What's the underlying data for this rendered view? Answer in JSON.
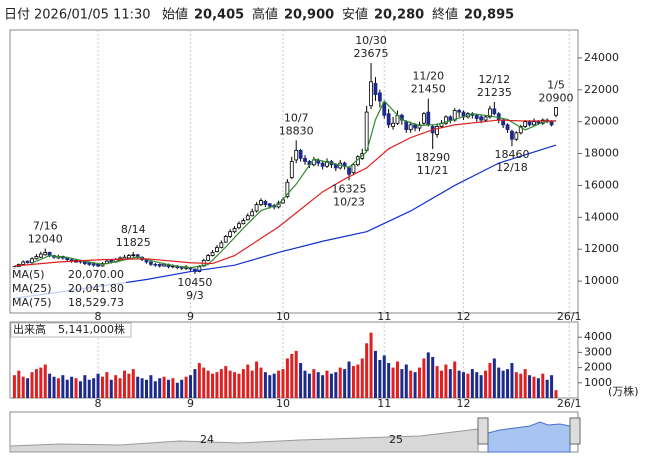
{
  "chart_data": {
    "type": "candlestick",
    "header": {
      "date_label": "日付",
      "date": "2026/01/05 11:30",
      "items": [
        {
          "name": "始値",
          "label": "20,405",
          "color": "#000"
        },
        {
          "name": "高値",
          "label": "20,900",
          "color": "#d00000"
        },
        {
          "name": "安値",
          "label": "20,280",
          "color": "#008000"
        },
        {
          "name": "終値",
          "label": "20,895",
          "color": "#000"
        }
      ]
    },
    "xlim": [
      -1,
      128
    ],
    "xticks": [
      {
        "value": 19,
        "label": "8"
      },
      {
        "value": 40,
        "label": "9"
      },
      {
        "value": 61,
        "label": "10"
      },
      {
        "value": 84,
        "label": "11"
      },
      {
        "value": 102,
        "label": "12"
      },
      {
        "value": 126,
        "label": "26/1"
      }
    ],
    "ylim": [
      8000,
      25750
    ],
    "yticks": [
      10000,
      12000,
      14000,
      16000,
      18000,
      20000,
      22000,
      24000
    ],
    "grid": true,
    "up_color": "#ffffff",
    "down_color": "#1c2a8c",
    "ohlc": [
      [
        10800,
        10950,
        10750,
        10900
      ],
      [
        10900,
        11100,
        10850,
        11050
      ],
      [
        11050,
        11300,
        11000,
        11200
      ],
      [
        11250,
        11300,
        11100,
        11150
      ],
      [
        11150,
        11500,
        11100,
        11400
      ],
      [
        11400,
        11700,
        11350,
        11550
      ],
      [
        11500,
        11850,
        11450,
        11700
      ],
      [
        11650,
        12040,
        11600,
        11800
      ],
      [
        11800,
        11850,
        11500,
        11600
      ],
      [
        11600,
        11650,
        11400,
        11500
      ],
      [
        11450,
        11650,
        11400,
        11550
      ],
      [
        11550,
        11600,
        11350,
        11450
      ],
      [
        11450,
        11500,
        11250,
        11350
      ],
      [
        11350,
        11400,
        11150,
        11250
      ],
      [
        11200,
        11400,
        11150,
        11300
      ],
      [
        11300,
        11350,
        11100,
        11200
      ],
      [
        11200,
        11250,
        11000,
        11100
      ],
      [
        11150,
        11200,
        10950,
        11050
      ],
      [
        11100,
        11150,
        10900,
        11000
      ],
      [
        11050,
        11100,
        10850,
        10950
      ],
      [
        10950,
        11200,
        10900,
        11100
      ],
      [
        11100,
        11350,
        11050,
        11250
      ],
      [
        11300,
        11350,
        11100,
        11200
      ],
      [
        11200,
        11450,
        11150,
        11350
      ],
      [
        11300,
        11550,
        11250,
        11450
      ],
      [
        11400,
        11650,
        11350,
        11500
      ],
      [
        11450,
        11700,
        11400,
        11600
      ],
      [
        11600,
        11825,
        11500,
        11650
      ],
      [
        11650,
        11700,
        11400,
        11500
      ],
      [
        11500,
        11550,
        11250,
        11350
      ],
      [
        11350,
        11400,
        11100,
        11200
      ],
      [
        11200,
        11250,
        10950,
        11050
      ],
      [
        11050,
        11150,
        10900,
        11000
      ],
      [
        11050,
        11100,
        10850,
        10950
      ],
      [
        10950,
        11150,
        10900,
        11050
      ],
      [
        11050,
        11100,
        10800,
        10900
      ],
      [
        10900,
        11050,
        10800,
        10950
      ],
      [
        10950,
        11000,
        10750,
        10850
      ],
      [
        10900,
        10950,
        10700,
        10800
      ],
      [
        10800,
        11000,
        10700,
        10900
      ],
      [
        10850,
        10900,
        10650,
        10750
      ],
      [
        10750,
        10800,
        10450,
        10600
      ],
      [
        10600,
        11000,
        10550,
        10900
      ],
      [
        10950,
        11400,
        10900,
        11300
      ],
      [
        11300,
        11700,
        11250,
        11600
      ],
      [
        11600,
        11950,
        11550,
        11800
      ],
      [
        11850,
        12250,
        11800,
        12100
      ],
      [
        12100,
        12550,
        12050,
        12400
      ],
      [
        12450,
        12900,
        12400,
        12800
      ],
      [
        12800,
        13250,
        12700,
        13100
      ],
      [
        13100,
        13450,
        13000,
        13300
      ],
      [
        13350,
        13750,
        13250,
        13600
      ],
      [
        13600,
        13950,
        13550,
        13800
      ],
      [
        13850,
        14250,
        13800,
        14100
      ],
      [
        14100,
        14550,
        14050,
        14350
      ],
      [
        14400,
        14950,
        14300,
        14800
      ],
      [
        14800,
        15200,
        14700,
        15050
      ],
      [
        15000,
        15100,
        14650,
        14800
      ],
      [
        14850,
        14900,
        14550,
        14700
      ],
      [
        14750,
        14850,
        14500,
        14650
      ],
      [
        14650,
        15050,
        14550,
        14900
      ],
      [
        14900,
        15250,
        14850,
        15100
      ],
      [
        15300,
        16400,
        15200,
        16200
      ],
      [
        16500,
        17800,
        16400,
        17500
      ],
      [
        17600,
        18830,
        17400,
        18200
      ],
      [
        18200,
        18300,
        17500,
        17700
      ],
      [
        17700,
        17900,
        17300,
        17500
      ],
      [
        17500,
        17600,
        17100,
        17300
      ],
      [
        17300,
        17800,
        17200,
        17600
      ],
      [
        17600,
        17700,
        17200,
        17400
      ],
      [
        17400,
        17500,
        17000,
        17200
      ],
      [
        17200,
        17700,
        17100,
        17500
      ],
      [
        17500,
        17600,
        17100,
        17300
      ],
      [
        17300,
        17400,
        16900,
        17100
      ],
      [
        17100,
        17600,
        17000,
        17400
      ],
      [
        17400,
        17500,
        17000,
        17200
      ],
      [
        17100,
        17200,
        16325,
        16700
      ],
      [
        16800,
        17400,
        16700,
        17300
      ],
      [
        17300,
        17900,
        17200,
        17800
      ],
      [
        17700,
        18300,
        17600,
        18000
      ],
      [
        18200,
        21000,
        18100,
        20600
      ],
      [
        21000,
        23675,
        20800,
        22500
      ],
      [
        22400,
        22800,
        21300,
        21700
      ],
      [
        21800,
        22000,
        20900,
        21300
      ],
      [
        21200,
        21300,
        20200,
        20400
      ],
      [
        20500,
        20800,
        19600,
        19800
      ],
      [
        19700,
        20300,
        19500,
        19900
      ],
      [
        19900,
        20700,
        19800,
        20400
      ],
      [
        20400,
        20500,
        19800,
        20100
      ],
      [
        20000,
        20100,
        19300,
        19500
      ],
      [
        19500,
        20000,
        19300,
        19800
      ],
      [
        19800,
        19900,
        19400,
        19600
      ],
      [
        19600,
        20000,
        19400,
        19800
      ],
      [
        19900,
        20600,
        19800,
        20500
      ],
      [
        20600,
        21450,
        19700,
        19800
      ],
      [
        19700,
        19800,
        18290,
        19300
      ],
      [
        19200,
        19900,
        19000,
        19700
      ],
      [
        19700,
        20100,
        19600,
        19900
      ],
      [
        19900,
        20400,
        19800,
        20300
      ],
      [
        20300,
        20400,
        19900,
        20100
      ],
      [
        20100,
        20850,
        20000,
        20700
      ],
      [
        20700,
        20800,
        20300,
        20600
      ],
      [
        20600,
        20700,
        20100,
        20300
      ],
      [
        20300,
        20600,
        20200,
        20500
      ],
      [
        20500,
        20600,
        20200,
        20400
      ],
      [
        20400,
        20500,
        20000,
        20200
      ],
      [
        20300,
        20400,
        19900,
        20100
      ],
      [
        20100,
        20400,
        20000,
        20300
      ],
      [
        20300,
        21000,
        20200,
        20800
      ],
      [
        20800,
        21235,
        20400,
        20500
      ],
      [
        20500,
        20600,
        19900,
        20100
      ],
      [
        20100,
        20200,
        19600,
        19800
      ],
      [
        19800,
        19900,
        19300,
        19500
      ],
      [
        19400,
        19500,
        18460,
        18900
      ],
      [
        18900,
        19400,
        18800,
        19300
      ],
      [
        19300,
        19800,
        19200,
        19700
      ],
      [
        19700,
        20100,
        19600,
        20000
      ],
      [
        20000,
        20100,
        19700,
        19800
      ],
      [
        19800,
        20200,
        19700,
        20000
      ],
      [
        20000,
        20100,
        19800,
        19900
      ],
      [
        19900,
        20200,
        19800,
        20100
      ],
      [
        20100,
        20200,
        19900,
        20000
      ],
      [
        20000,
        20100,
        19700,
        19800
      ],
      [
        20405,
        20900,
        20280,
        20895
      ]
    ],
    "series": [
      {
        "name": "MA(5)",
        "label": "20,070.00",
        "color": "#2e8b2e",
        "x": [
          4,
          8,
          12,
          16,
          20,
          24,
          28,
          32,
          36,
          40,
          44,
          48,
          52,
          56,
          60,
          64,
          68,
          72,
          76,
          80,
          82,
          84,
          88,
          92,
          96,
          100,
          104,
          108,
          112,
          116,
          120,
          123
        ],
        "values": [
          11140,
          11600,
          11490,
          11240,
          11060,
          11270,
          11520,
          11220,
          10970,
          10840,
          11040,
          12140,
          13320,
          14420,
          14820,
          16080,
          17660,
          17400,
          17140,
          18120,
          20120,
          21300,
          20120,
          19760,
          19820,
          20140,
          20500,
          20360,
          20140,
          19480,
          19960,
          20070
        ]
      },
      {
        "name": "MA(25)",
        "label": "20,041.80",
        "color": "#e02020",
        "x": [
          0,
          10,
          20,
          30,
          40,
          45,
          50,
          55,
          60,
          65,
          70,
          75,
          80,
          85,
          90,
          95,
          100,
          110,
          115,
          123
        ],
        "values": [
          10950,
          11200,
          11350,
          11400,
          11150,
          11100,
          11600,
          12500,
          13400,
          14500,
          15600,
          16400,
          17100,
          18300,
          19000,
          19500,
          19800,
          20100,
          20050,
          20042
        ]
      },
      {
        "name": "MA(75)",
        "label": "18,529.73",
        "color": "#1030d0",
        "x": [
          0,
          10,
          20,
          30,
          40,
          50,
          60,
          70,
          80,
          90,
          100,
          110,
          123
        ],
        "values": [
          8930,
          9300,
          9700,
          10100,
          10600,
          11000,
          11800,
          12500,
          13100,
          14400,
          16000,
          17400,
          18530
        ]
      }
    ],
    "annotations": [
      {
        "date": "7/16",
        "value": 12040
      },
      {
        "date": "8/14",
        "value": 11825
      },
      {
        "date": "9/3",
        "value": 10450
      },
      {
        "date": "10/7",
        "value": 18830
      },
      {
        "date": "10/23",
        "value": 16325
      },
      {
        "date": "10/30",
        "value": 23675
      },
      {
        "date": "11/20",
        "value": 21450
      },
      {
        "date": "11/21",
        "value": 18290
      },
      {
        "date": "12/12",
        "value": 21235
      },
      {
        "date": "12/18",
        "value": 18460
      },
      {
        "date": "1/5",
        "value": 20900
      }
    ],
    "volume_title": "出来高",
    "volume_label": "5,141,000株",
    "volume_unit": "(万株)",
    "vlim": [
      0,
      5000
    ],
    "vticks": [
      1000,
      2000,
      3000,
      4000
    ],
    "volume": [
      1500,
      1800,
      1400,
      1300,
      1700,
      1900,
      2000,
      2200,
      1600,
      1400,
      1300,
      1500,
      1200,
      1400,
      1300,
      1100,
      1500,
      1200,
      1300,
      1600,
      1400,
      1700,
      1200,
      1500,
      1300,
      1800,
      1600,
      1900,
      1400,
      1300,
      1200,
      1500,
      1100,
      1300,
      1400,
      1200,
      1300,
      1000,
      1200,
      1400,
      1500,
      1900,
      2300,
      2000,
      1800,
      1600,
      1700,
      1900,
      2100,
      1800,
      1700,
      1600,
      1900,
      2200,
      1800,
      2400,
      2000,
      1700,
      1500,
      1600,
      1800,
      1900,
      2600,
      2900,
      3100,
      2300,
      1800,
      1600,
      1900,
      1700,
      1500,
      1800,
      1600,
      1700,
      2000,
      1900,
      2400,
      2100,
      2200,
      2600,
      3600,
      4300,
      3100,
      2500,
      2800,
      2300,
      2000,
      2400,
      1900,
      2200,
      1800,
      1700,
      2000,
      2600,
      3000,
      2700,
      2100,
      1800,
      2200,
      1900,
      2400,
      1800,
      1700,
      1600,
      1900,
      1700,
      1500,
      1800,
      2300,
      2600,
      2000,
      1800,
      1900,
      2300,
      1700,
      1600,
      1900,
      1500,
      1400,
      1300,
      1600,
      1200,
      1500,
      514
    ],
    "navigator_labels": [
      "24",
      "25"
    ]
  }
}
